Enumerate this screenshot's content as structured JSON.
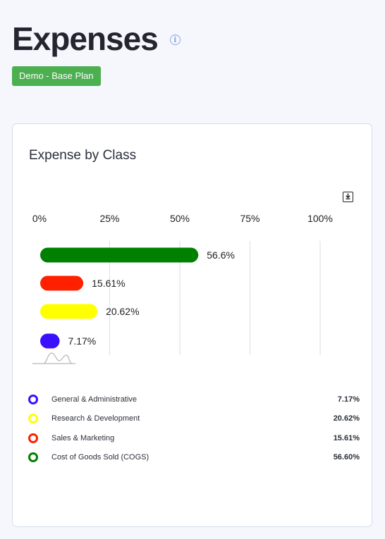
{
  "header": {
    "title": "Expenses",
    "info_glyph": "i",
    "plan_badge": "Demo - Base Plan"
  },
  "icons": {
    "info": "info-icon",
    "download": "download-icon"
  },
  "chart_data": {
    "type": "bar",
    "orientation": "horizontal",
    "title": "Expense by Class",
    "xlim": [
      0,
      100
    ],
    "x_tick_labels": [
      "0%",
      "25%",
      "50%",
      "75%",
      "100%"
    ],
    "grid": true,
    "categories": [
      "Cost of Goods Sold (COGS)",
      "Sales & Marketing",
      "Research & Development",
      "General & Administrative"
    ],
    "values": [
      56.6,
      15.61,
      20.62,
      7.17
    ],
    "data_labels": [
      "56.6%",
      "15.61%",
      "20.62%",
      "7.17%"
    ],
    "colors": [
      "#008000",
      "#ff2000",
      "#ffff00",
      "#3a10ff"
    ]
  },
  "legend": {
    "items": [
      {
        "label": "General & Administrative",
        "value": "7.17%",
        "color": "#3a10ff"
      },
      {
        "label": "Research & Development",
        "value": "20.62%",
        "color": "#ffff00"
      },
      {
        "label": "Sales & Marketing",
        "value": "15.61%",
        "color": "#ff2000"
      },
      {
        "label": "Cost of Goods Sold (COGS)",
        "value": "56.60%",
        "color": "#008000"
      }
    ]
  }
}
